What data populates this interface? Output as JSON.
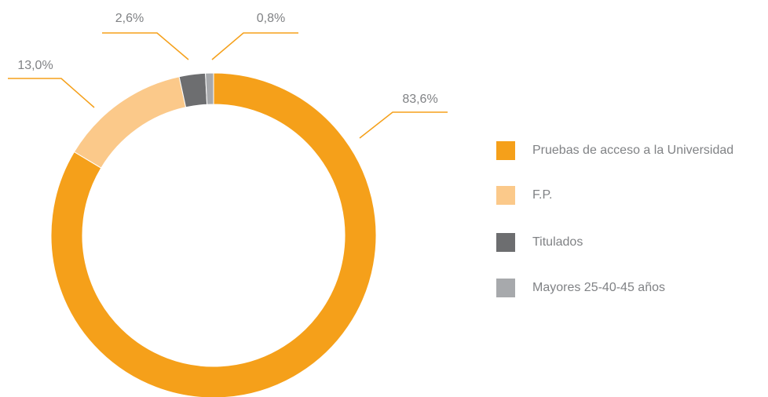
{
  "chart_data": {
    "type": "donut",
    "categories": [
      "Pruebas de acceso a la Universidad",
      "F.P.",
      "Titulados",
      "Mayores 25-40-45 años"
    ],
    "values": [
      83.6,
      13.0,
      2.6,
      0.8
    ],
    "value_labels": [
      "83,6%",
      "13,0%",
      "2,6%",
      "0,8%"
    ],
    "colors": [
      "#f5a01a",
      "#fbc98a",
      "#6d6e70",
      "#a7a9ac"
    ],
    "legend": "right"
  }
}
